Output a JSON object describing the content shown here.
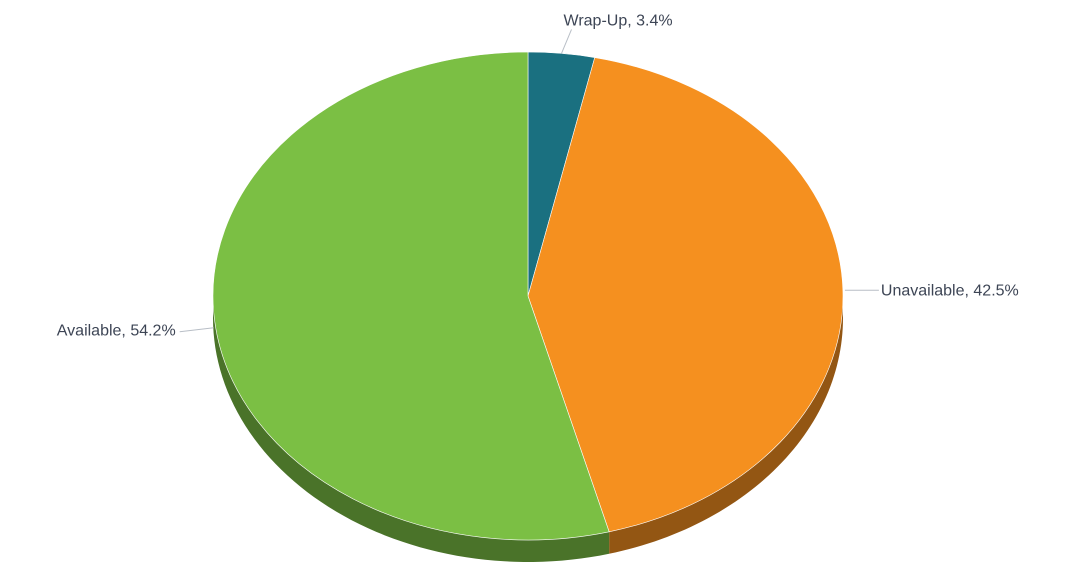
{
  "chart_data": {
    "type": "pie",
    "title": "",
    "series": [
      {
        "name": "Wrap-Up",
        "value": 3.4,
        "label": "Wrap-Up, 3.4%",
        "color": "#1a7080"
      },
      {
        "name": "Unavailable",
        "value": 42.5,
        "label": "Unavailable, 42.5%",
        "color": "#f5901f"
      },
      {
        "name": "Available",
        "value": 54.2,
        "label": "Available, 54.2%",
        "color": "#7bbf44"
      }
    ],
    "legend": false,
    "three_d": true
  }
}
